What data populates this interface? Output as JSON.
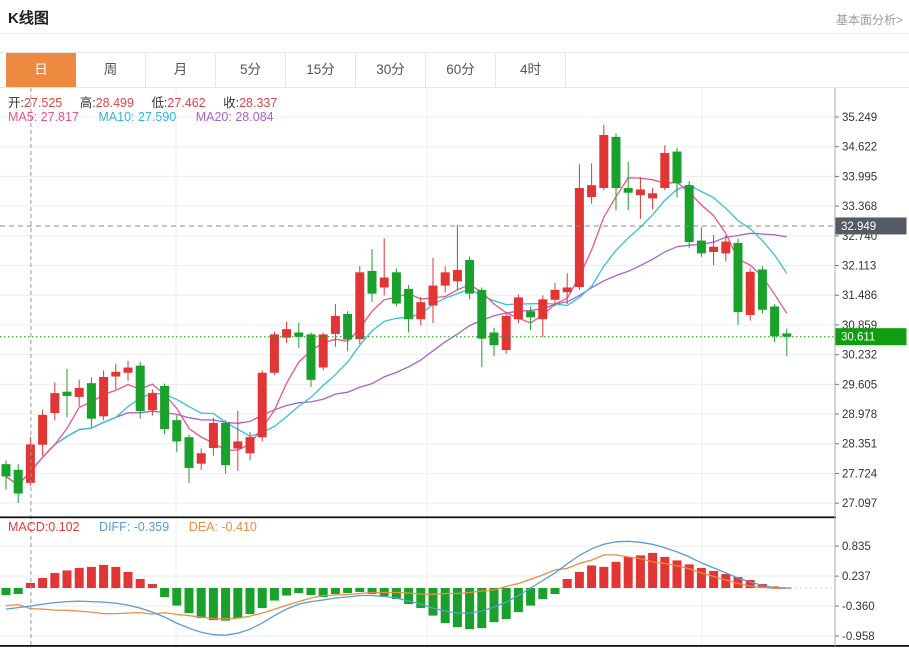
{
  "header": {
    "title": "K线图",
    "link": "基本面分析>"
  },
  "tabs": [
    {
      "label": "日",
      "name": "day",
      "selected": true
    },
    {
      "label": "周",
      "name": "week",
      "selected": false
    },
    {
      "label": "月",
      "name": "month",
      "selected": false
    },
    {
      "label": "5分",
      "name": "5min",
      "selected": false
    },
    {
      "label": "15分",
      "name": "15min",
      "selected": false
    },
    {
      "label": "30分",
      "name": "30min",
      "selected": false
    },
    {
      "label": "60分",
      "name": "60min",
      "selected": false
    },
    {
      "label": "4时",
      "name": "4hour",
      "selected": false
    }
  ],
  "legend": {
    "ohlc": [
      {
        "label": "开:",
        "value": "27.525"
      },
      {
        "label": "高:",
        "value": "28.499"
      },
      {
        "label": "低:",
        "value": "27.462"
      },
      {
        "label": "收:",
        "value": "28.337"
      }
    ],
    "ma": [
      {
        "label": "MA5:",
        "value": "27.817"
      },
      {
        "label": "MA10:",
        "value": "27.590"
      },
      {
        "label": "MA20:",
        "value": "28.084"
      }
    ],
    "macd": [
      {
        "text": "MACD:0.102"
      },
      {
        "text": "DIFF: -0.359"
      },
      {
        "text": "DEA: -0.410"
      }
    ]
  },
  "axis": {
    "crosshair_badge": {
      "value": 32.949,
      "bg": "#555b62"
    },
    "price_badge": {
      "value": 30.611,
      "bg": "#0f9e0f"
    }
  },
  "colors": {
    "up": "#e23535",
    "down": "#1aa12b",
    "ma5": "#ed538c",
    "ma10": "#36c0d8",
    "ma20": "#a763c9",
    "diff_line": "#5b9bd5",
    "dea_line": "#ef8b43",
    "crosshair": "#999999",
    "price_line": "#0f9e0f",
    "grid": "#ededed",
    "axis_line": "#aaaaaa",
    "tick_text": "#333333",
    "divider": "#141414",
    "tab_active_bg": "#ee8a40",
    "legend_value": "#e24444"
  },
  "chart_data": {
    "type": "candlestick",
    "sub_indicator": "macd",
    "title": "K线图",
    "crosshair": {
      "candle_index": 2,
      "price": 32.949
    },
    "latest_price": 30.611,
    "ohlc_legend": {
      "open": 27.525,
      "high": 28.499,
      "low": 27.462,
      "close": 28.337
    },
    "ma_legend": {
      "ma5": 27.817,
      "ma10": 27.59,
      "ma20": 28.084
    },
    "macd_legend": {
      "macd": 0.102,
      "diff": -0.359,
      "dea": -0.41
    },
    "price_axis_ticks": [
      35.249,
      34.622,
      33.995,
      33.368,
      32.74,
      32.113,
      31.486,
      30.859,
      30.232,
      29.605,
      28.978,
      28.351,
      27.724,
      27.097
    ],
    "macd_axis_ticks": [
      0.835,
      0.237,
      -0.36,
      -0.958
    ],
    "candles": [
      [
        27.92,
        28.0,
        27.38,
        27.66
      ],
      [
        27.8,
        27.92,
        27.1,
        27.3
      ],
      [
        27.525,
        28.499,
        27.462,
        28.337
      ],
      [
        28.33,
        29.07,
        28.1,
        28.96
      ],
      [
        29.0,
        29.65,
        28.85,
        29.42
      ],
      [
        29.45,
        29.93,
        28.91,
        29.36
      ],
      [
        29.34,
        29.7,
        29.15,
        29.53
      ],
      [
        29.63,
        29.75,
        28.7,
        28.88
      ],
      [
        28.93,
        29.9,
        28.85,
        29.76
      ],
      [
        29.77,
        30.04,
        29.5,
        29.87
      ],
      [
        29.85,
        30.1,
        29.68,
        29.96
      ],
      [
        30.0,
        30.08,
        28.88,
        29.04
      ],
      [
        29.06,
        29.5,
        28.95,
        29.42
      ],
      [
        29.57,
        29.62,
        28.55,
        28.66
      ],
      [
        28.85,
        28.95,
        28.18,
        28.4
      ],
      [
        28.49,
        28.55,
        27.52,
        27.84
      ],
      [
        27.93,
        28.25,
        27.8,
        28.15
      ],
      [
        28.26,
        28.9,
        28.1,
        28.79
      ],
      [
        28.79,
        28.85,
        27.72,
        27.9
      ],
      [
        28.25,
        29.05,
        27.78,
        28.4
      ],
      [
        28.15,
        28.6,
        28.0,
        28.49
      ],
      [
        28.49,
        29.9,
        28.4,
        29.85
      ],
      [
        29.85,
        30.72,
        29.8,
        30.66
      ],
      [
        30.59,
        30.93,
        30.48,
        30.77
      ],
      [
        30.7,
        30.91,
        30.37,
        30.61
      ],
      [
        30.66,
        30.7,
        29.55,
        29.7
      ],
      [
        29.96,
        30.7,
        29.9,
        30.66
      ],
      [
        30.67,
        31.3,
        30.4,
        31.05
      ],
      [
        31.09,
        31.15,
        30.3,
        30.55
      ],
      [
        30.56,
        32.1,
        30.45,
        31.97
      ],
      [
        32.0,
        32.46,
        31.35,
        31.52
      ],
      [
        31.65,
        32.69,
        31.48,
        31.86
      ],
      [
        31.97,
        32.05,
        31.25,
        31.31
      ],
      [
        31.62,
        31.7,
        30.7,
        30.98
      ],
      [
        30.98,
        31.45,
        30.85,
        31.34
      ],
      [
        31.27,
        32.27,
        30.9,
        31.69
      ],
      [
        31.69,
        32.1,
        31.55,
        31.97
      ],
      [
        31.78,
        32.97,
        31.6,
        32.02
      ],
      [
        32.23,
        32.3,
        31.4,
        31.52
      ],
      [
        31.6,
        31.65,
        29.97,
        30.57
      ],
      [
        30.7,
        30.8,
        30.2,
        30.43
      ],
      [
        30.33,
        31.1,
        30.25,
        31.05
      ],
      [
        30.98,
        31.5,
        30.9,
        31.44
      ],
      [
        31.15,
        31.25,
        30.75,
        31.02
      ],
      [
        30.98,
        31.48,
        30.6,
        31.4
      ],
      [
        31.39,
        31.75,
        31.25,
        31.6
      ],
      [
        31.55,
        31.95,
        31.3,
        31.65
      ],
      [
        31.66,
        34.25,
        31.6,
        33.75
      ],
      [
        33.56,
        34.27,
        33.42,
        33.81
      ],
      [
        33.75,
        35.08,
        33.7,
        34.87
      ],
      [
        34.83,
        34.9,
        33.28,
        33.75
      ],
      [
        33.75,
        34.3,
        33.28,
        33.65
      ],
      [
        33.6,
        33.98,
        33.1,
        33.72
      ],
      [
        33.53,
        33.75,
        33.3,
        33.64
      ],
      [
        33.75,
        34.65,
        33.7,
        34.49
      ],
      [
        34.52,
        34.6,
        33.55,
        33.85
      ],
      [
        33.81,
        33.9,
        32.48,
        32.61
      ],
      [
        32.64,
        32.92,
        32.3,
        32.37
      ],
      [
        32.4,
        32.76,
        32.12,
        32.51
      ],
      [
        32.37,
        32.75,
        32.2,
        32.62
      ],
      [
        32.59,
        32.68,
        30.86,
        31.13
      ],
      [
        31.07,
        32.05,
        30.95,
        31.98
      ],
      [
        32.03,
        32.1,
        31.1,
        31.18
      ],
      [
        31.25,
        31.3,
        30.5,
        30.62
      ],
      [
        30.68,
        30.78,
        30.2,
        30.611
      ]
    ],
    "macd": {
      "bars": [
        -0.14,
        -0.12,
        0.102,
        0.2,
        0.3,
        0.35,
        0.4,
        0.42,
        0.46,
        0.42,
        0.32,
        0.18,
        0.08,
        -0.18,
        -0.35,
        -0.5,
        -0.6,
        -0.64,
        -0.65,
        -0.6,
        -0.52,
        -0.4,
        -0.25,
        -0.15,
        -0.1,
        -0.14,
        -0.18,
        -0.12,
        -0.1,
        -0.08,
        -0.12,
        -0.16,
        -0.22,
        -0.32,
        -0.4,
        -0.55,
        -0.7,
        -0.78,
        -0.82,
        -0.8,
        -0.68,
        -0.62,
        -0.48,
        -0.35,
        -0.22,
        -0.12,
        0.18,
        0.32,
        0.45,
        0.42,
        0.52,
        0.62,
        0.65,
        0.7,
        0.62,
        0.55,
        0.47,
        0.4,
        0.34,
        0.28,
        0.22,
        0.16,
        0.08,
        0.03,
        0.01
      ],
      "diff": [
        -0.42,
        -0.39,
        -0.359,
        -0.32,
        -0.29,
        -0.27,
        -0.26,
        -0.27,
        -0.28,
        -0.3,
        -0.34,
        -0.4,
        -0.48,
        -0.58,
        -0.7,
        -0.8,
        -0.88,
        -0.93,
        -0.94,
        -0.9,
        -0.82,
        -0.7,
        -0.55,
        -0.42,
        -0.32,
        -0.27,
        -0.24,
        -0.2,
        -0.18,
        -0.15,
        -0.15,
        -0.17,
        -0.2,
        -0.26,
        -0.32,
        -0.4,
        -0.46,
        -0.5,
        -0.5,
        -0.46,
        -0.38,
        -0.28,
        -0.15,
        0.0,
        0.15,
        0.3,
        0.48,
        0.65,
        0.78,
        0.87,
        0.92,
        0.93,
        0.91,
        0.87,
        0.8,
        0.72,
        0.62,
        0.5,
        0.4,
        0.3,
        0.2,
        0.12,
        0.05,
        0.01,
        0.0
      ]
    }
  }
}
